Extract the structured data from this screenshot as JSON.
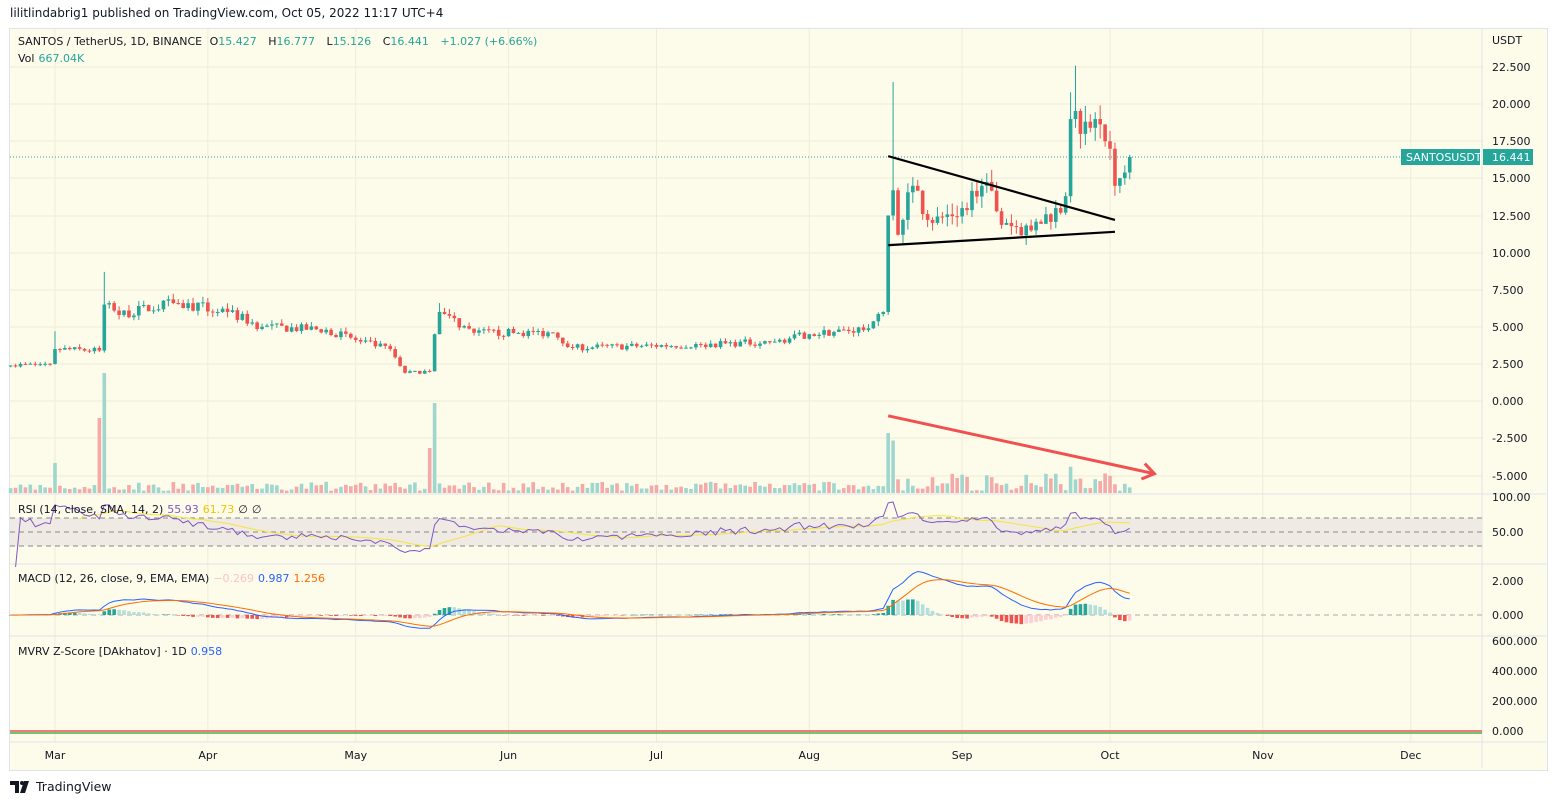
{
  "publisher_line": "lilitlindabrig1 published on TradingView.com, Oct 05, 2022 11:17 UTC+4",
  "symbol": {
    "title": "SANTOS / TetherUS, 1D, BINANCE",
    "o_label": "O",
    "o": "15.427",
    "h_label": "H",
    "h": "16.777",
    "l_label": "L",
    "l": "15.126",
    "c_label": "C",
    "c": "16.441",
    "change": "+1.027 (+6.66%)",
    "vol_label": "Vol",
    "vol": "667.04K"
  },
  "price_axis": {
    "currency": "USDT",
    "ticks": [
      "22.500",
      "20.000",
      "17.500",
      "15.000",
      "12.500",
      "10.000",
      "7.500",
      "5.000",
      "2.500",
      "0.000",
      "-2.500",
      "-5.000"
    ],
    "last_label": "SANTOSUSDT",
    "last_value": "16.441"
  },
  "rsi": {
    "title": "RSI (14, close, SMA, 14, 2)",
    "v1": "55.93",
    "v2": "61.73",
    "v3": "∅",
    "v4": "∅",
    "ticks": [
      "100.00",
      "50.00"
    ]
  },
  "macd": {
    "title": "MACD (12, 26, close, 9, EMA, EMA)",
    "hist": "−0.269",
    "macd": "0.987",
    "signal": "1.256",
    "ticks": [
      "2.000",
      "0.000"
    ]
  },
  "mvrv": {
    "title": "MVRV Z-Score [DAkhatov] · 1D",
    "value": "0.958",
    "ticks": [
      "600.000",
      "400.000",
      "200.000",
      "0.000"
    ]
  },
  "time_axis": [
    "Mar",
    "Apr",
    "May",
    "Jun",
    "Jul",
    "Aug",
    "Sep",
    "Oct",
    "Nov",
    "Dec"
  ],
  "colors": {
    "up": "#26a69a",
    "down": "#ef5350",
    "rsi": "#7e57c2",
    "rsi_ma": "#f7e33b",
    "macd": "#2962ff",
    "signal": "#ff6d00",
    "arrow": "#f05050",
    "background": "#fdfbea"
  },
  "footer": {
    "logo_text": "TradingView"
  },
  "chart_data": {
    "type": "candlestick",
    "interval": "1D",
    "start_date": "2022-02-20",
    "end_date": "2022-10-05",
    "ylim": [
      -6,
      23.5
    ],
    "close_keyframes": [
      [
        "2022-02-20",
        2.4
      ],
      [
        "2022-02-28",
        2.5
      ],
      [
        "2022-03-01",
        3.5
      ],
      [
        "2022-03-10",
        3.4
      ],
      [
        "2022-03-11",
        6.5
      ],
      [
        "2022-03-14",
        5.8
      ],
      [
        "2022-03-25",
        6.6
      ],
      [
        "2022-04-05",
        6.0
      ],
      [
        "2022-04-12",
        5.0
      ],
      [
        "2022-04-25",
        4.8
      ],
      [
        "2022-05-02",
        4.0
      ],
      [
        "2022-05-08",
        3.5
      ],
      [
        "2022-05-11",
        1.9
      ],
      [
        "2022-05-16",
        2.0
      ],
      [
        "2022-05-17",
        4.5
      ],
      [
        "2022-05-18",
        6.0
      ],
      [
        "2022-05-25",
        4.6
      ],
      [
        "2022-06-10",
        4.6
      ],
      [
        "2022-06-14",
        3.6
      ],
      [
        "2022-07-10",
        3.8
      ],
      [
        "2022-07-25",
        4.0
      ],
      [
        "2022-08-01",
        4.5
      ],
      [
        "2022-08-13",
        4.9
      ],
      [
        "2022-08-16",
        6.0
      ],
      [
        "2022-08-17",
        12.5
      ],
      [
        "2022-08-18",
        14.2
      ],
      [
        "2022-08-19",
        11.2
      ],
      [
        "2022-08-22",
        14.5
      ],
      [
        "2022-08-26",
        12.0
      ],
      [
        "2022-09-01",
        13.0
      ],
      [
        "2022-09-05",
        14.5
      ],
      [
        "2022-09-10",
        12.0
      ],
      [
        "2022-09-15",
        11.5
      ],
      [
        "2022-09-20",
        13.0
      ],
      [
        "2022-09-22",
        13.8
      ],
      [
        "2022-09-23",
        19.0
      ],
      [
        "2022-09-25",
        18.0
      ],
      [
        "2022-09-28",
        19.0
      ],
      [
        "2022-09-30",
        17.5
      ],
      [
        "2022-10-01",
        17.0
      ],
      [
        "2022-10-02",
        14.5
      ],
      [
        "2022-10-04",
        15.4
      ],
      [
        "2022-10-05",
        16.441
      ]
    ],
    "wick_highs": [
      [
        "2022-03-01",
        4.7
      ],
      [
        "2022-03-11",
        8.7
      ],
      [
        "2022-05-18",
        6.6
      ],
      [
        "2022-08-18",
        21.5
      ],
      [
        "2022-09-24",
        22.6
      ],
      [
        "2022-09-23",
        20.8
      ]
    ],
    "volume_peaks": [
      [
        "2022-03-01",
        0.4
      ],
      [
        "2022-03-11",
        1.6
      ],
      [
        "2022-03-10",
        1.0
      ],
      [
        "2022-05-17",
        1.2
      ],
      [
        "2022-05-16",
        0.6
      ],
      [
        "2022-08-17",
        0.8
      ],
      [
        "2022-08-18",
        0.7
      ],
      [
        "2022-09-23",
        0.35
      ]
    ],
    "annotations": {
      "triangle_upper": [
        [
          "2022-08-17",
          16.5
        ],
        [
          "2022-10-02",
          12.2
        ]
      ],
      "triangle_lower": [
        [
          "2022-08-17",
          10.5
        ],
        [
          "2022-10-02",
          11.4
        ]
      ],
      "arrow": [
        [
          "2022-08-17",
          -1.0
        ],
        [
          "2022-10-10",
          -4.9
        ]
      ]
    }
  }
}
